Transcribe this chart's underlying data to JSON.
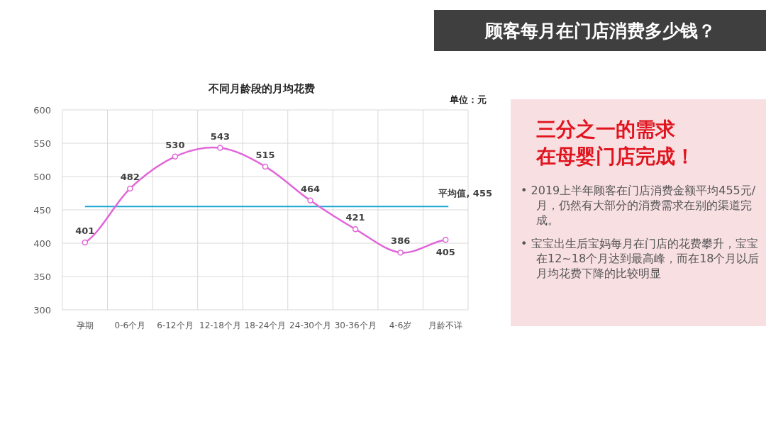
{
  "chart_data": [
    {
      "type": "other",
      "title": "顾客每月在门店消费多少钱？"
    },
    {
      "type": "line",
      "title": "不同月龄段的月均花费",
      "categories": [
        "孕期",
        "0-6个月",
        "6-12个月",
        "12-18个月",
        "18-24个月",
        "24-30个月",
        "30-36个月",
        "4-6岁",
        "月龄不详"
      ],
      "series": [
        {
          "color": "#e066d9",
          "values": [
            401,
            482,
            530,
            543,
            515,
            464,
            421,
            386,
            405
          ]
        }
      ],
      "ylim": [
        300,
        600
      ],
      "yticks": [
        300,
        350,
        400,
        450,
        500,
        550,
        600
      ],
      "grid": true,
      "marker": "circle",
      "data_labels": true,
      "ref_lines": [
        {
          "axis": "y",
          "value": 455,
          "label": "平均值, 455",
          "color": "#1ba7d0"
        }
      ],
      "annotations": [
        "单位：元"
      ]
    },
    {
      "type": "other",
      "title": "三分之一的需求在母婴门店完成！",
      "annotations": [
        "• 2019上半年顾客在门店消费金额平均455元/月，仍然有大部分的消费需求在别的渠道完成。",
        "• 宝宝出生后宝妈每月在门店的花费攀升，宝宝在12~18个月达到最高峰，而在18个月以后月均花费下降的比较明显"
      ]
    }
  ]
}
